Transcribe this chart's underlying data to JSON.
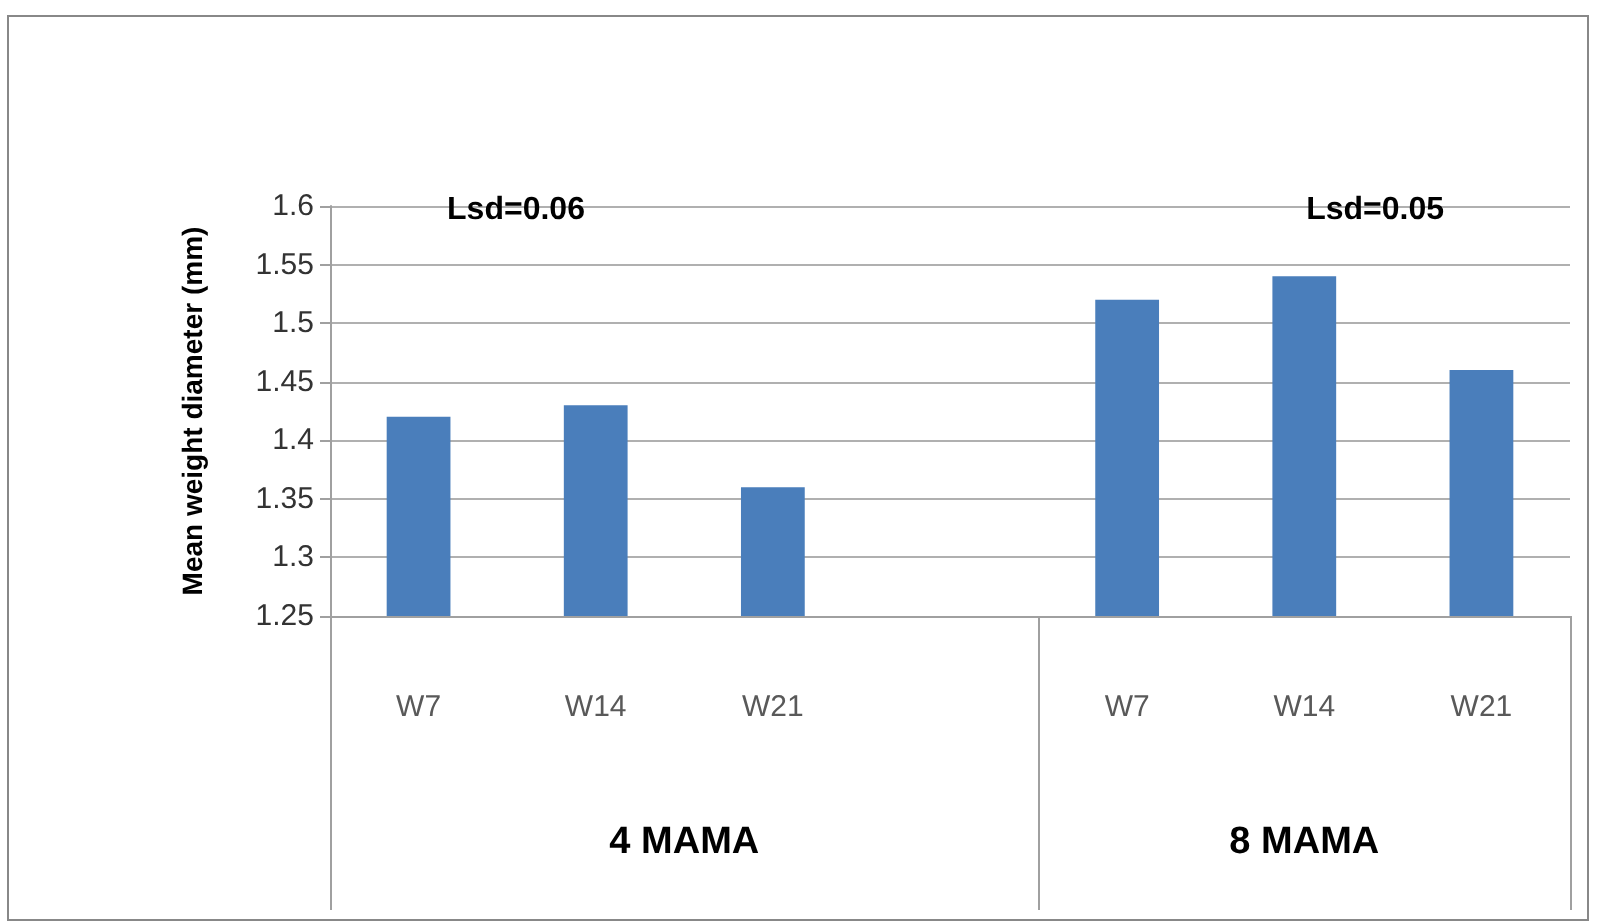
{
  "chart_data": {
    "type": "bar",
    "ylabel": "Mean weight diameter (mm)",
    "categories": [
      "W7",
      "W14",
      "W21",
      null,
      "W7",
      "W14",
      "W21"
    ],
    "values": [
      1.42,
      1.43,
      1.36,
      null,
      1.52,
      1.54,
      1.46
    ],
    "color": "#4a7ebb",
    "ylim": [
      1.25,
      1.6
    ],
    "yticks": [
      1.25,
      1.3,
      1.35,
      1.4,
      1.45,
      1.5,
      1.55,
      1.6
    ],
    "grid": "y",
    "annotations": [
      "Lsd=0.06",
      "Lsd=0.05",
      "4 MAMA",
      "8 MAMA"
    ]
  }
}
